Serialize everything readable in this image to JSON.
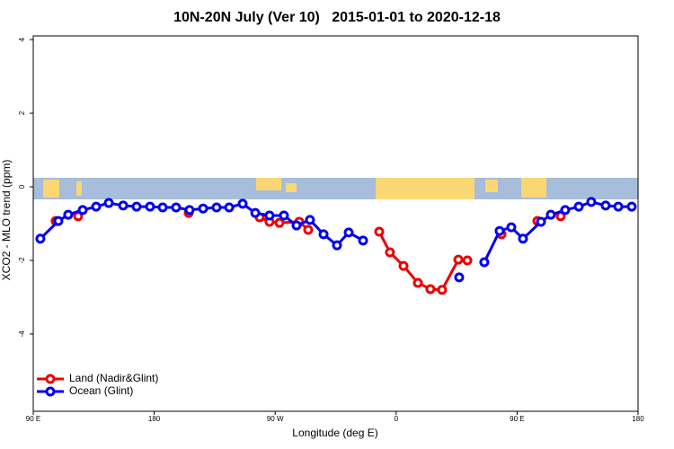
{
  "chart_data": {
    "type": "line",
    "title": "10N-20N July (Ver 10)   2015-01-01 to 2020-12-18",
    "x_label": "Longitude (deg E)",
    "y_label": "XCO2 - MLO trend (ppm)",
    "xlim": [
      90,
      540
    ],
    "ylim": [
      -6.1,
      4.1
    ],
    "xticks": [
      {
        "value": 90,
        "label": "90 E"
      },
      180,
      {
        "value": 270,
        "label": "90 W"
      },
      {
        "value": 360,
        "label": "0"
      },
      {
        "value": 450,
        "label": "90 E"
      },
      {
        "value": 540,
        "label": "180"
      }
    ],
    "yticks": [
      -4,
      -2,
      0,
      2,
      4
    ],
    "legend": "bottom-left",
    "series": [
      {
        "name": "Land (Nadir&Glint)",
        "color": "#ee0000",
        "x": [
          106.7,
          null,
          123.4,
          null,
          205.7,
          null,
          258.5,
          265.8,
          273.2,
          287.9,
          294.6,
          null,
          347.4,
          355.4,
          365.5,
          376.2,
          385.5,
          394.2,
          406.3,
          413.0,
          null,
          438.4,
          null,
          465.1,
          null,
          482.5
        ],
        "values": [
          -0.93,
          null,
          -0.8,
          null,
          -0.71,
          null,
          -0.83,
          -0.95,
          -0.98,
          -0.95,
          -1.17,
          null,
          -1.22,
          -1.78,
          -2.15,
          -2.61,
          -2.78,
          -2.8,
          -1.98,
          -2.0,
          null,
          -1.29,
          null,
          -0.93,
          null,
          -0.8
        ]
      },
      {
        "name": "Ocean (Glint)",
        "color": "#0000ee",
        "x": [
          95.3,
          108.7,
          116.0,
          126.8,
          136.8,
          146.2,
          156.9,
          166.9,
          176.9,
          186.3,
          196.3,
          206.3,
          216.4,
          226.4,
          235.8,
          245.8,
          255.2,
          265.8,
          276.5,
          285.9,
          295.9,
          306.0,
          316.0,
          324.7,
          335.4,
          null,
          406.9,
          null,
          425.6,
          437.0,
          445.7,
          454.4,
          467.8,
          475.1,
          485.8,
          495.9,
          505.2,
          515.9,
          525.3,
          535.3
        ],
        "values": [
          -1.41,
          -0.93,
          -0.76,
          -0.63,
          -0.54,
          -0.44,
          -0.51,
          -0.54,
          -0.54,
          -0.56,
          -0.56,
          -0.63,
          -0.59,
          -0.56,
          -0.56,
          -0.46,
          -0.71,
          -0.78,
          -0.78,
          -1.05,
          -0.9,
          -1.29,
          -1.59,
          -1.24,
          -1.46,
          null,
          -2.46,
          null,
          -2.05,
          -1.2,
          -1.1,
          -1.41,
          -0.95,
          -0.76,
          -0.63,
          -0.54,
          -0.41,
          -0.51,
          -0.54,
          -0.54
        ]
      }
    ]
  }
}
